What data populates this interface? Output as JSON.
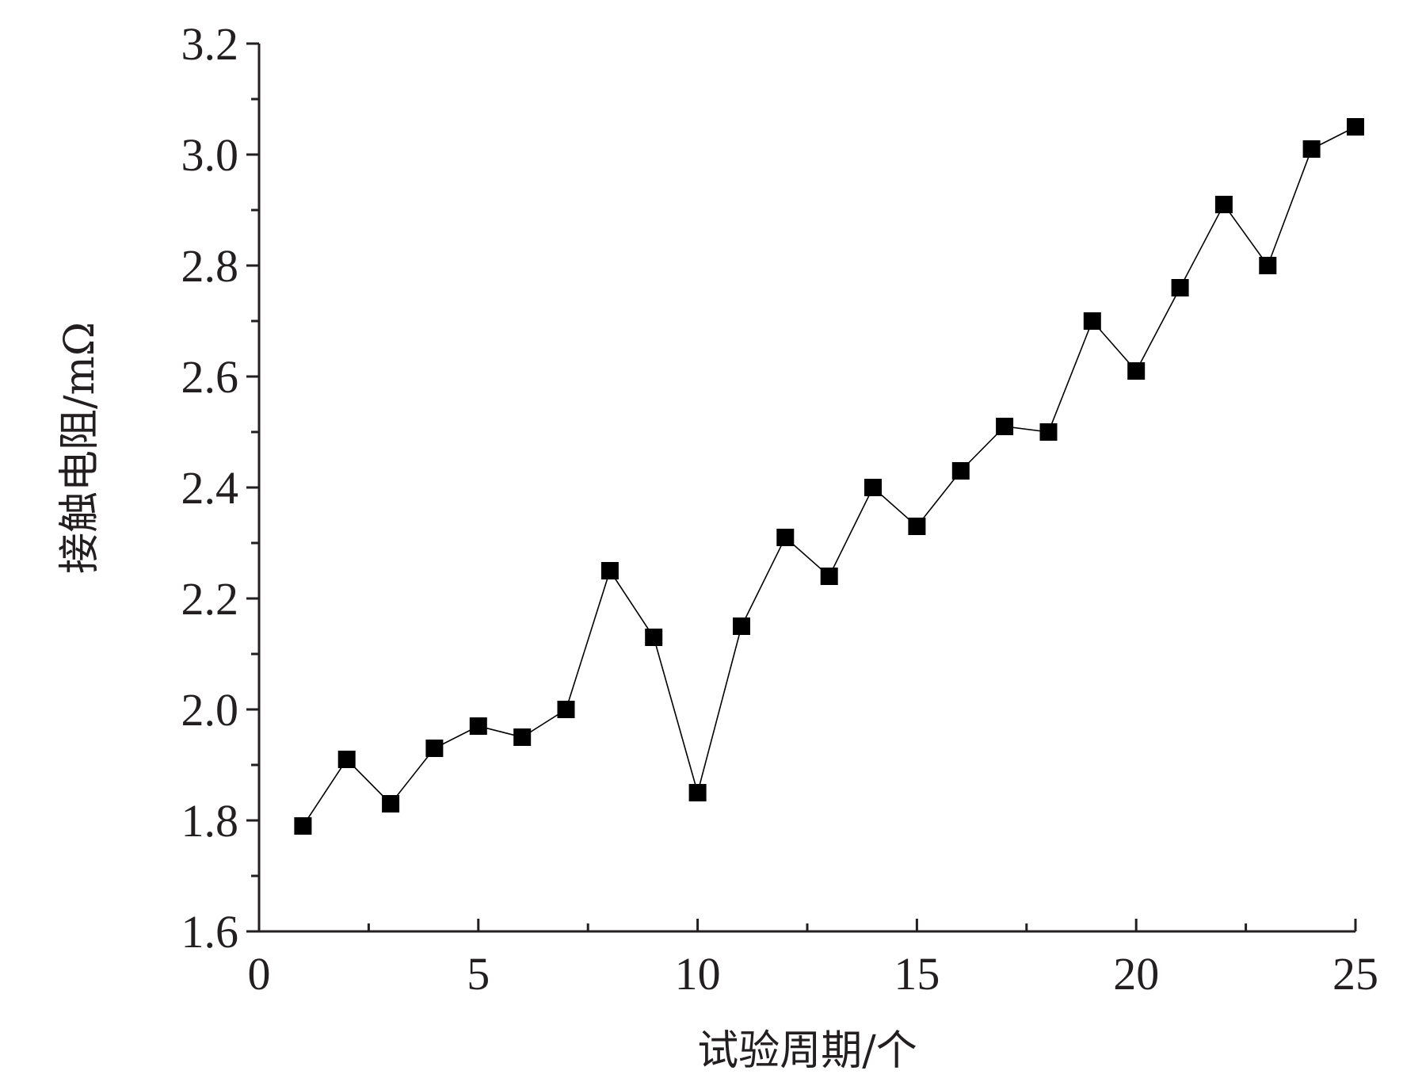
{
  "chart_data": {
    "type": "line",
    "title": "",
    "xlabel": "试验周期/个",
    "ylabel": "接触电阻/mΩ",
    "xlim": [
      0,
      25
    ],
    "ylim": [
      1.6,
      3.2
    ],
    "xticks": [
      "0",
      "5",
      "10",
      "15",
      "20",
      "25"
    ],
    "yticks": [
      "1.6",
      "1.8",
      "2.0",
      "2.2",
      "2.4",
      "2.6",
      "2.8",
      "3.0",
      "3.2"
    ],
    "grid": false,
    "legend": "none",
    "marker": "square",
    "line_color": "#000000",
    "series": [
      {
        "x": [
          1,
          2,
          3,
          4,
          5,
          6,
          7,
          8,
          9,
          10,
          11,
          12,
          13,
          14,
          15,
          16,
          17,
          18,
          19,
          20,
          21,
          22,
          23,
          24,
          25
        ],
        "y": [
          1.79,
          1.91,
          1.83,
          1.93,
          1.97,
          1.95,
          2.0,
          2.25,
          2.13,
          1.85,
          2.15,
          2.31,
          2.24,
          2.4,
          2.33,
          2.43,
          2.51,
          2.5,
          2.7,
          2.61,
          2.76,
          2.91,
          2.8,
          3.01,
          3.05
        ]
      }
    ]
  }
}
